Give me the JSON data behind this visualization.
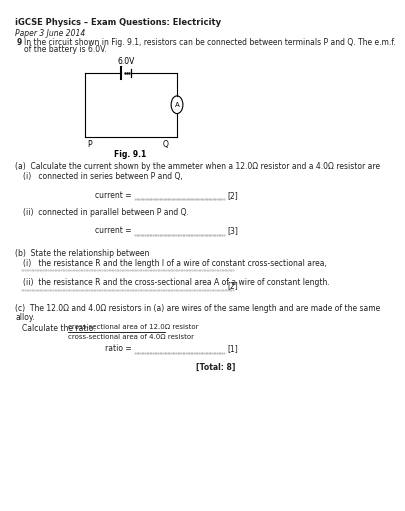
{
  "title": "iGCSE Physics – Exam Questions: Electricity",
  "paper_label": "Paper 3 June 2014",
  "question_num": "9",
  "question_text1": "In the circuit shown in Fig. 9.1, resistors can be connected between terminals P and Q. The e.m.f.",
  "question_text2": "of the battery is 6.0V.",
  "voltage_label": "6.0V",
  "fig_label": "Fig. 9.1",
  "part_a_intro": "(a)  Calculate the current shown by the ammeter when a 12.0Ω resistor and a 4.0Ω resistor are",
  "part_a_i": "(i)   connected in series between P and Q,",
  "part_a_ii": "(ii)  connected in parallel between P and Q.",
  "current_label": "current = ",
  "mark2": "[2]",
  "mark3": "[3]",
  "part_b_intro": "(b)  State the relationship between",
  "part_b_i": "(i)   the resistance R and the length l of a wire of constant cross-sectional area,",
  "part_b_ii": "(ii)  the resistance R and the cross-sectional area A of a wire of constant length.",
  "part_b_mark": "[2]",
  "part_c_intro1": "(c)  The 12.0Ω and 4.0Ω resistors in (a) are wires of the same length and are made of the same",
  "part_c_intro2": "alloy.",
  "part_c_calc": "Calculate the ratio: ",
  "part_c_ratio_line1": "cross-sectional area of 12.0Ω resistor",
  "part_c_ratio_line2": "cross-sectional area of 4.0Ω resistor",
  "ratio_label": "ratio = ",
  "mark1": "[1]",
  "total": "[Total: 8]",
  "bg_color": "#ffffff",
  "text_color": "#231f20",
  "line_color": "#aaaaaa"
}
